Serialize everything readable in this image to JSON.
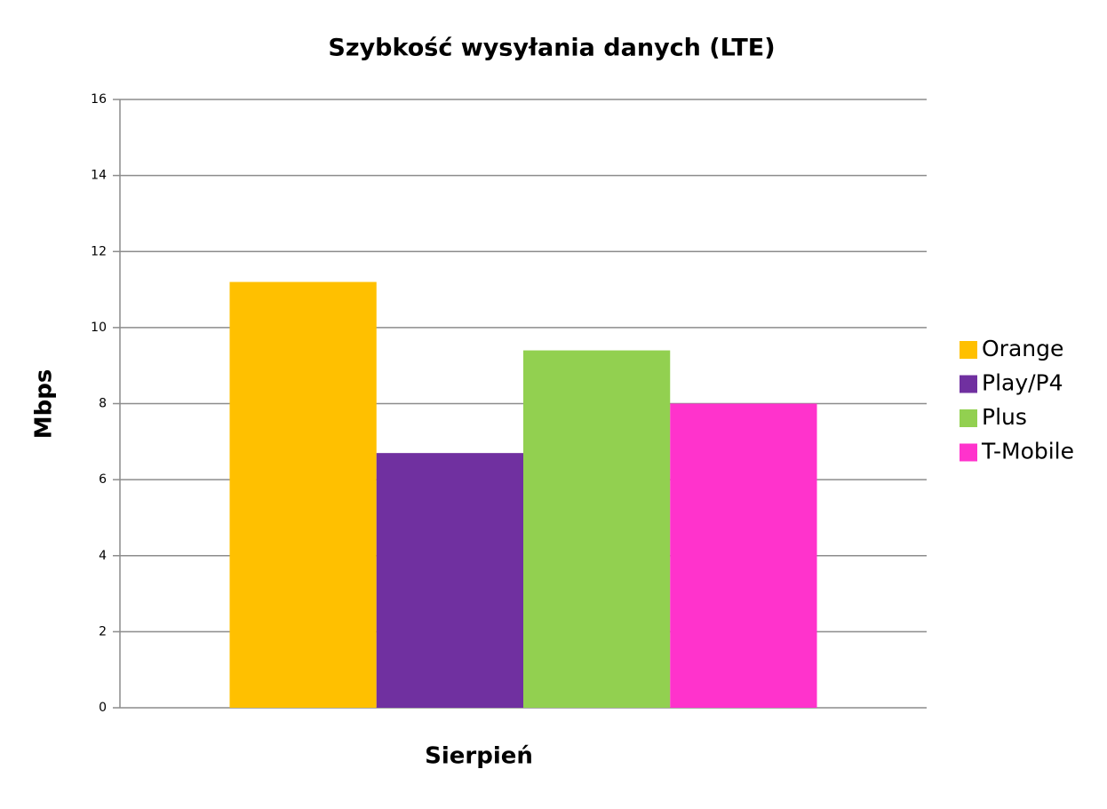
{
  "chart_data": {
    "type": "bar",
    "title": "Szybkość wysyłania danych (LTE)",
    "ylabel": "Mbps",
    "categories": [
      "Sierpień"
    ],
    "series": [
      {
        "name": "Orange",
        "color": "#ffc000",
        "values": [
          11.2
        ]
      },
      {
        "name": "Play/P4",
        "color": "#7030a0",
        "values": [
          6.7
        ]
      },
      {
        "name": "Plus",
        "color": "#92d050",
        "values": [
          9.4
        ]
      },
      {
        "name": "T-Mobile",
        "color": "#ff33cc",
        "values": [
          8.0
        ]
      }
    ],
    "ylim": [
      0,
      16
    ],
    "yticks": [
      0,
      2,
      4,
      6,
      8,
      10,
      12,
      14,
      16
    ],
    "grid": true,
    "legend": "right"
  }
}
